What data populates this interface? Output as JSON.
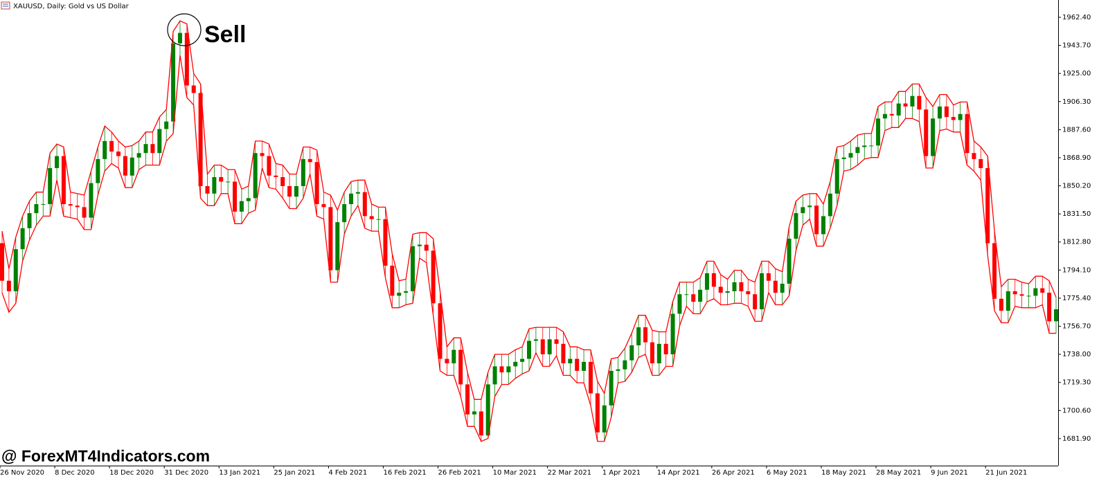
{
  "chart_data": {
    "type": "candlestick",
    "title": "XAUUSD, Daily:  Gold vs US Dollar",
    "annotation": "Sell",
    "watermark": "@ ForexMT4Indicators.com",
    "up_color": "#008000",
    "down_color": "#ff0000",
    "envelope_color": "#ff0000",
    "categories": [
      "26 Nov 2020",
      null,
      null,
      null,
      null,
      null,
      null,
      null,
      "8 Dec 2020",
      null,
      null,
      null,
      null,
      null,
      null,
      null,
      "18 Dec 2020",
      null,
      null,
      null,
      null,
      null,
      null,
      null,
      "31 Dec 2020",
      null,
      null,
      null,
      null,
      null,
      null,
      null,
      "13 Jan 2021",
      null,
      null,
      null,
      null,
      null,
      null,
      null,
      "25 Jan 2021",
      null,
      null,
      null,
      null,
      null,
      null,
      null,
      "4 Feb 2021",
      null,
      null,
      null,
      null,
      null,
      null,
      null,
      "16 Feb 2021",
      null,
      null,
      null,
      null,
      null,
      null,
      null,
      "26 Feb 2021",
      null,
      null,
      null,
      null,
      null,
      null,
      null,
      "10 Mar 2021",
      null,
      null,
      null,
      null,
      null,
      null,
      null,
      "22 Mar 2021",
      null,
      null,
      null,
      null,
      null,
      null,
      null,
      "1 Apr 2021",
      null,
      null,
      null,
      null,
      null,
      null,
      null,
      "14 Apr 2021",
      null,
      null,
      null,
      null,
      null,
      null,
      null,
      "26 Apr 2021",
      null,
      null,
      null,
      null,
      null,
      null,
      null,
      "6 May 2021",
      null,
      null,
      null,
      null,
      null,
      null,
      null,
      "18 May 2021",
      null,
      null,
      null,
      null,
      null,
      null,
      null,
      "28 May 2021",
      null,
      null,
      null,
      null,
      null,
      null,
      null,
      "9 Jun 2021",
      null,
      null,
      null,
      null,
      null,
      null,
      null,
      "21 Jun 2021",
      null,
      null,
      null,
      null,
      null,
      null,
      null,
      null,
      null,
      null
    ],
    "open": [
      1812,
      1787,
      1780,
      1808,
      1822,
      1832,
      1838,
      1838,
      1862,
      1870,
      1838,
      1837,
      1836,
      1829,
      1852,
      1868,
      1880,
      1873,
      1870,
      1857,
      1869,
      1872,
      1878,
      1872,
      1888,
      1893,
      1945,
      1952,
      1917,
      1912,
      1850,
      1845,
      1856,
      1853,
      1853,
      1833,
      1840,
      1842,
      1872,
      1870,
      1857,
      1856,
      1850,
      1843,
      1850,
      1868,
      1866,
      1838,
      1836,
      1794,
      1826,
      1838,
      1845,
      1846,
      1830,
      1828,
      1828,
      1797,
      1777,
      1779,
      1780,
      1810,
      1811,
      1807,
      1772,
      1735,
      1732,
      1741,
      1718,
      1698,
      1700,
      1684,
      1718,
      1730,
      1726,
      1730,
      1733,
      1735,
      1747,
      1748,
      1738,
      1748,
      1745,
      1732,
      1735,
      1727,
      1733,
      1712,
      1686,
      1704,
      1727,
      1728,
      1734,
      1744,
      1756,
      1746,
      1732,
      1745,
      1738,
      1765,
      1778,
      1778,
      1773,
      1781,
      1792,
      1783,
      1779,
      1780,
      1786,
      1780,
      1778,
      1768,
      1792,
      1787,
      1779,
      1785,
      1815,
      1832,
      1836,
      1837,
      1818,
      1830,
      1845,
      1868,
      1869,
      1872,
      1876,
      1877,
      1877,
      1895,
      1898,
      1897,
      1905,
      1903,
      1910,
      1901,
      1870,
      1895,
      1903,
      1896,
      1894,
      1898,
      1872,
      1868,
      1862,
      1812,
      1775,
      1767,
      1780,
      1778,
      1777,
      1777,
      1782,
      1779,
      1760
    ],
    "high": [
      1820,
      1795,
      1816,
      1830,
      1840,
      1846,
      1846,
      1872,
      1878,
      1876,
      1846,
      1845,
      1844,
      1860,
      1876,
      1890,
      1886,
      1880,
      1876,
      1877,
      1880,
      1886,
      1886,
      1896,
      1901,
      1953,
      1960,
      1958,
      1925,
      1918,
      1858,
      1864,
      1864,
      1861,
      1861,
      1848,
      1850,
      1880,
      1880,
      1878,
      1865,
      1864,
      1858,
      1858,
      1876,
      1876,
      1874,
      1846,
      1844,
      1834,
      1846,
      1853,
      1854,
      1854,
      1838,
      1836,
      1836,
      1805,
      1787,
      1788,
      1818,
      1819,
      1819,
      1815,
      1780,
      1743,
      1749,
      1749,
      1726,
      1708,
      1708,
      1726,
      1738,
      1738,
      1738,
      1741,
      1743,
      1755,
      1756,
      1756,
      1756,
      1756,
      1753,
      1743,
      1743,
      1741,
      1741,
      1720,
      1712,
      1735,
      1736,
      1742,
      1752,
      1764,
      1764,
      1754,
      1753,
      1753,
      1773,
      1786,
      1786,
      1786,
      1789,
      1800,
      1800,
      1791,
      1788,
      1794,
      1794,
      1788,
      1786,
      1800,
      1800,
      1795,
      1793,
      1823,
      1840,
      1844,
      1845,
      1845,
      1838,
      1853,
      1876,
      1877,
      1880,
      1884,
      1885,
      1885,
      1903,
      1906,
      1906,
      1913,
      1913,
      1918,
      1918,
      1909,
      1903,
      1911,
      1911,
      1904,
      1906,
      1906,
      1880,
      1876,
      1870,
      1820,
      1783,
      1788,
      1788,
      1786,
      1785,
      1790,
      1790,
      1787,
      1776
    ],
    "low": [
      1779,
      1766,
      1772,
      1800,
      1814,
      1824,
      1830,
      1830,
      1854,
      1830,
      1829,
      1828,
      1821,
      1821,
      1844,
      1860,
      1865,
      1862,
      1849,
      1849,
      1861,
      1864,
      1864,
      1864,
      1880,
      1885,
      1937,
      1909,
      1904,
      1842,
      1837,
      1837,
      1845,
      1845,
      1825,
      1825,
      1832,
      1834,
      1862,
      1849,
      1848,
      1842,
      1835,
      1835,
      1842,
      1858,
      1830,
      1828,
      1786,
      1786,
      1818,
      1830,
      1837,
      1822,
      1820,
      1820,
      1789,
      1769,
      1769,
      1771,
      1772,
      1802,
      1799,
      1764,
      1727,
      1724,
      1724,
      1710,
      1690,
      1690,
      1680,
      1682,
      1710,
      1718,
      1718,
      1722,
      1725,
      1727,
      1739,
      1730,
      1730,
      1737,
      1724,
      1724,
      1719,
      1719,
      1704,
      1680,
      1680,
      1696,
      1719,
      1720,
      1726,
      1736,
      1738,
      1724,
      1724,
      1730,
      1730,
      1757,
      1770,
      1765,
      1765,
      1773,
      1775,
      1771,
      1771,
      1772,
      1772,
      1770,
      1760,
      1760,
      1779,
      1771,
      1771,
      1777,
      1807,
      1824,
      1828,
      1810,
      1810,
      1822,
      1837,
      1860,
      1861,
      1864,
      1868,
      1869,
      1869,
      1887,
      1889,
      1889,
      1895,
      1895,
      1893,
      1862,
      1862,
      1887,
      1888,
      1886,
      1886,
      1864,
      1860,
      1854,
      1804,
      1767,
      1759,
      1759,
      1770,
      1769,
      1769,
      1769,
      1771,
      1752,
      1752
    ],
    "close": [
      1787,
      1780,
      1808,
      1822,
      1832,
      1838,
      1838,
      1862,
      1870,
      1838,
      1837,
      1836,
      1829,
      1852,
      1868,
      1880,
      1873,
      1870,
      1857,
      1869,
      1872,
      1878,
      1872,
      1888,
      1893,
      1945,
      1952,
      1917,
      1912,
      1850,
      1845,
      1856,
      1853,
      1853,
      1833,
      1840,
      1842,
      1872,
      1870,
      1857,
      1856,
      1850,
      1843,
      1850,
      1868,
      1866,
      1838,
      1836,
      1794,
      1826,
      1838,
      1845,
      1846,
      1830,
      1828,
      1828,
      1797,
      1777,
      1779,
      1780,
      1810,
      1811,
      1807,
      1772,
      1735,
      1732,
      1741,
      1718,
      1698,
      1700,
      1684,
      1718,
      1730,
      1726,
      1730,
      1733,
      1735,
      1747,
      1748,
      1738,
      1748,
      1745,
      1732,
      1735,
      1727,
      1733,
      1712,
      1686,
      1704,
      1727,
      1728,
      1734,
      1744,
      1756,
      1746,
      1732,
      1745,
      1738,
      1765,
      1778,
      1778,
      1773,
      1781,
      1792,
      1783,
      1779,
      1780,
      1786,
      1780,
      1778,
      1768,
      1792,
      1787,
      1779,
      1785,
      1815,
      1832,
      1836,
      1837,
      1818,
      1830,
      1845,
      1868,
      1869,
      1872,
      1876,
      1877,
      1877,
      1895,
      1898,
      1897,
      1905,
      1903,
      1910,
      1901,
      1870,
      1895,
      1903,
      1896,
      1894,
      1898,
      1872,
      1868,
      1862,
      1812,
      1775,
      1767,
      1780,
      1778,
      1777,
      1777,
      1782,
      1779,
      1760,
      1768
    ],
    "ylim": [
      1663.9,
      1973.9
    ],
    "yticks": [
      {
        "value": 1962.4,
        "label": "1962.40"
      },
      {
        "value": 1943.7,
        "label": "1943.70"
      },
      {
        "value": 1925.0,
        "label": "1925.00"
      },
      {
        "value": 1906.3,
        "label": "1906.30"
      },
      {
        "value": 1887.6,
        "label": "1887.60"
      },
      {
        "value": 1868.9,
        "label": "1868.90"
      },
      {
        "value": 1850.2,
        "label": "1850.20"
      },
      {
        "value": 1831.5,
        "label": "1831.50"
      },
      {
        "value": 1812.8,
        "label": "1812.80"
      },
      {
        "value": 1794.1,
        "label": "1794.10"
      },
      {
        "value": 1775.4,
        "label": "1775.40"
      },
      {
        "value": 1756.7,
        "label": "1756.70"
      },
      {
        "value": 1738.0,
        "label": "1738.00"
      },
      {
        "value": 1719.3,
        "label": "1719.30"
      },
      {
        "value": 1700.6,
        "label": "1700.60"
      },
      {
        "value": 1681.9,
        "label": "1681.90"
      }
    ]
  }
}
